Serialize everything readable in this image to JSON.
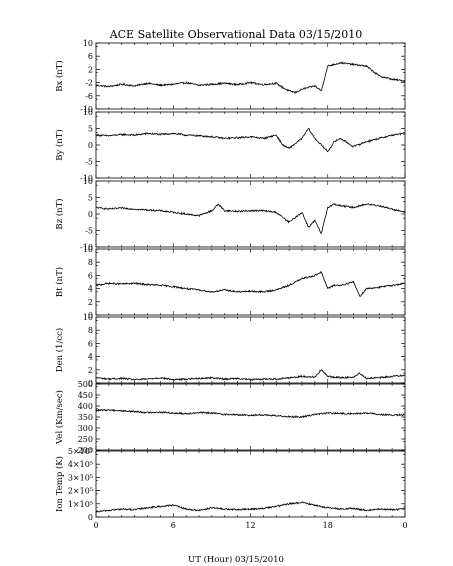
{
  "title": "ACE Satellite Observational Data   03/15/2010",
  "xlabel": "UT (Hour)   03/15/2010",
  "x_ticks": [
    "0",
    "6",
    "12",
    "18",
    "0"
  ],
  "colors": {
    "line": "#000000",
    "background": "#ffffff"
  },
  "chart_data": [
    {
      "type": "line",
      "ylabel": "Bx (nT)",
      "ylim": [
        -10,
        10
      ],
      "yticks": [
        "10",
        "6",
        "2",
        "-2",
        "-6",
        "-10"
      ],
      "x": [
        0,
        1,
        2,
        3,
        4,
        5,
        6,
        7,
        8,
        9,
        10,
        11,
        12,
        13,
        14,
        14.5,
        15,
        15.5,
        16,
        16.5,
        17,
        17.5,
        18,
        18.5,
        19,
        20,
        21,
        21.5,
        22,
        23,
        24
      ],
      "values": [
        -2.8,
        -3.2,
        -2.5,
        -3.0,
        -2.2,
        -2.8,
        -2.5,
        -2.0,
        -2.8,
        -2.5,
        -2.2,
        -2.6,
        -2.0,
        -2.6,
        -2.2,
        -3.5,
        -4.5,
        -5.0,
        -4.0,
        -3.5,
        -3.0,
        -4.5,
        3.0,
        3.5,
        4.0,
        3.5,
        3.0,
        1.5,
        0.0,
        -1.0,
        -1.5
      ],
      "grid": false
    },
    {
      "type": "line",
      "ylabel": "By (nT)",
      "ylim": [
        -10,
        10
      ],
      "yticks": [
        "10",
        "5",
        "0",
        "-5",
        "-10"
      ],
      "x": [
        0,
        1,
        2,
        3,
        4,
        5,
        6,
        7,
        8,
        9,
        10,
        11,
        12,
        13,
        14,
        14.5,
        15,
        15.5,
        16,
        16.5,
        17,
        17.5,
        18,
        18.5,
        19,
        20,
        21,
        22,
        23,
        24
      ],
      "values": [
        3.0,
        2.8,
        3.2,
        3.0,
        3.5,
        3.2,
        3.5,
        3.0,
        2.8,
        2.5,
        2.0,
        2.2,
        2.5,
        2.0,
        3.0,
        0.0,
        -1.0,
        0.5,
        2.0,
        5.0,
        2.0,
        0.0,
        -2.0,
        1.0,
        2.0,
        -0.5,
        1.0,
        2.0,
        3.0,
        3.5
      ],
      "grid": false
    },
    {
      "type": "line",
      "ylabel": "Bz (nT)",
      "ylim": [
        -10,
        10
      ],
      "yticks": [
        "10",
        "5",
        "0",
        "-5",
        "-10"
      ],
      "x": [
        0,
        1,
        2,
        3,
        4,
        5,
        6,
        7,
        8,
        9,
        9.5,
        10,
        11,
        12,
        13,
        14,
        14.5,
        15,
        15.5,
        16,
        16.5,
        17,
        17.5,
        18,
        18.5,
        19,
        20,
        21,
        22,
        23,
        24
      ],
      "values": [
        2.0,
        1.5,
        1.8,
        1.5,
        1.2,
        1.0,
        0.5,
        0.0,
        -0.5,
        1.0,
        3.0,
        1.0,
        0.8,
        1.0,
        1.0,
        0.5,
        -1.0,
        -2.5,
        -1.0,
        0.5,
        -4.0,
        -2.0,
        -6.0,
        2.0,
        3.0,
        2.5,
        2.0,
        3.0,
        2.5,
        1.5,
        0.5
      ],
      "grid": false
    },
    {
      "type": "line",
      "ylabel": "Bt (nT)",
      "ylim": [
        0,
        10
      ],
      "yticks": [
        "10",
        "8",
        "6",
        "4",
        "2",
        "0"
      ],
      "x": [
        0,
        1,
        2,
        3,
        4,
        5,
        6,
        7,
        8,
        9,
        10,
        11,
        12,
        13,
        14,
        15,
        16,
        17,
        17.5,
        18,
        18.5,
        19,
        20,
        20.5,
        21,
        22,
        23,
        24
      ],
      "values": [
        4.5,
        4.8,
        4.7,
        4.8,
        4.6,
        4.5,
        4.3,
        4.0,
        3.8,
        3.5,
        3.8,
        3.5,
        3.6,
        3.5,
        3.8,
        4.5,
        5.5,
        6.0,
        6.5,
        4.0,
        4.5,
        4.5,
        5.0,
        2.8,
        4.0,
        4.2,
        4.5,
        4.8
      ],
      "grid": false
    },
    {
      "type": "line",
      "ylabel": "Den (1/cc)",
      "ylim": [
        0,
        10
      ],
      "yticks": [
        "10",
        "8",
        "6",
        "4",
        "2",
        "0"
      ],
      "x": [
        0,
        1,
        2,
        3,
        4,
        5,
        6,
        7,
        8,
        9,
        10,
        11,
        12,
        13,
        14,
        15,
        16,
        17,
        17.5,
        18,
        19,
        20,
        20.5,
        21,
        22,
        23,
        24
      ],
      "values": [
        0.8,
        0.6,
        0.7,
        0.5,
        0.6,
        0.8,
        0.5,
        0.6,
        0.7,
        0.8,
        0.6,
        0.7,
        0.5,
        0.6,
        0.6,
        0.8,
        1.0,
        0.9,
        2.0,
        1.0,
        0.8,
        0.9,
        1.5,
        0.7,
        0.8,
        1.0,
        1.2
      ],
      "grid": false
    },
    {
      "type": "line",
      "ylabel": "Vel (Km/sec)",
      "ylim": [
        200,
        500
      ],
      "yticks": [
        "500",
        "450",
        "400",
        "350",
        "300",
        "250",
        "200"
      ],
      "x": [
        0,
        1,
        2,
        3,
        4,
        5,
        6,
        7,
        8,
        9,
        10,
        11,
        12,
        13,
        14,
        15,
        16,
        17,
        18,
        19,
        20,
        21,
        22,
        23,
        24
      ],
      "values": [
        380,
        382,
        378,
        375,
        370,
        372,
        368,
        365,
        370,
        368,
        362,
        360,
        358,
        360,
        355,
        352,
        350,
        362,
        368,
        366,
        365,
        368,
        362,
        358,
        360
      ],
      "grid": false
    },
    {
      "type": "line",
      "ylabel": "Ion Temp (K)",
      "ylim": [
        0,
        500000
      ],
      "yticks": [
        "5×10⁵",
        "4×10⁵",
        "3×10⁵",
        "2×10⁵",
        "1×10⁵",
        "0"
      ],
      "x": [
        0,
        1,
        2,
        3,
        4,
        5,
        6,
        7,
        8,
        9,
        10,
        11,
        12,
        13,
        14,
        15,
        16,
        17,
        18,
        19,
        20,
        21,
        22,
        23,
        24
      ],
      "values": [
        40000,
        50000,
        60000,
        55000,
        70000,
        80000,
        90000,
        60000,
        50000,
        70000,
        60000,
        55000,
        60000,
        65000,
        80000,
        100000,
        110000,
        90000,
        70000,
        60000,
        65000,
        50000,
        60000,
        55000,
        60000
      ],
      "grid": false
    }
  ]
}
